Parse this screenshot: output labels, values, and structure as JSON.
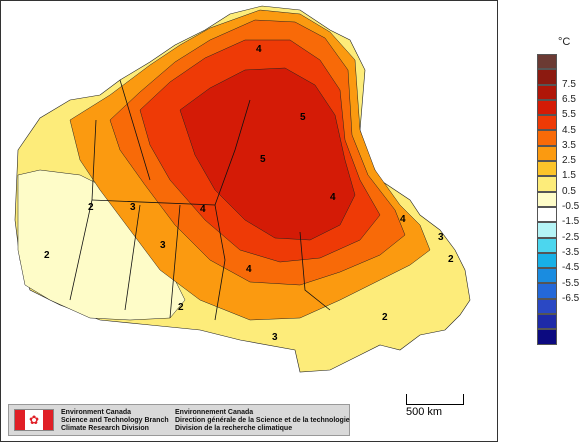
{
  "legend": {
    "unit": "°C",
    "labels": [
      "7.5",
      "6.5",
      "5.5",
      "4.5",
      "3.5",
      "2.5",
      "1.5",
      "0.5",
      "-0.5",
      "-1.5",
      "-2.5",
      "-3.5",
      "-4.5",
      "-5.5",
      "-6.5"
    ],
    "colors": [
      "#6b3a33",
      "#8c1a10",
      "#b01608",
      "#d41b06",
      "#ee3a06",
      "#f86a08",
      "#fb9a10",
      "#fcc42a",
      "#fdec7a",
      "#fefcc8",
      "#ffffff",
      "#b5f4f6",
      "#4cd6ee",
      "#18b0e6",
      "#1a8ce0",
      "#2468d8",
      "#2a48c4",
      "#1e2aa8",
      "#0c0a80"
    ]
  },
  "map": {
    "contour_labels": [
      "5",
      "4",
      "4",
      "3",
      "3",
      "2",
      "2",
      "4",
      "3",
      "2",
      "2",
      "2",
      "4",
      "5",
      "4",
      "3"
    ]
  },
  "scale_bar": {
    "label": "500 km"
  },
  "credit": {
    "en": [
      "Environment Canada",
      "Science and Technology Branch",
      "Climate Research Division"
    ],
    "fr": [
      "Environnement Canada",
      "Direction générale de la Science et de la technologie",
      "Division de la recherche climatique"
    ]
  }
}
